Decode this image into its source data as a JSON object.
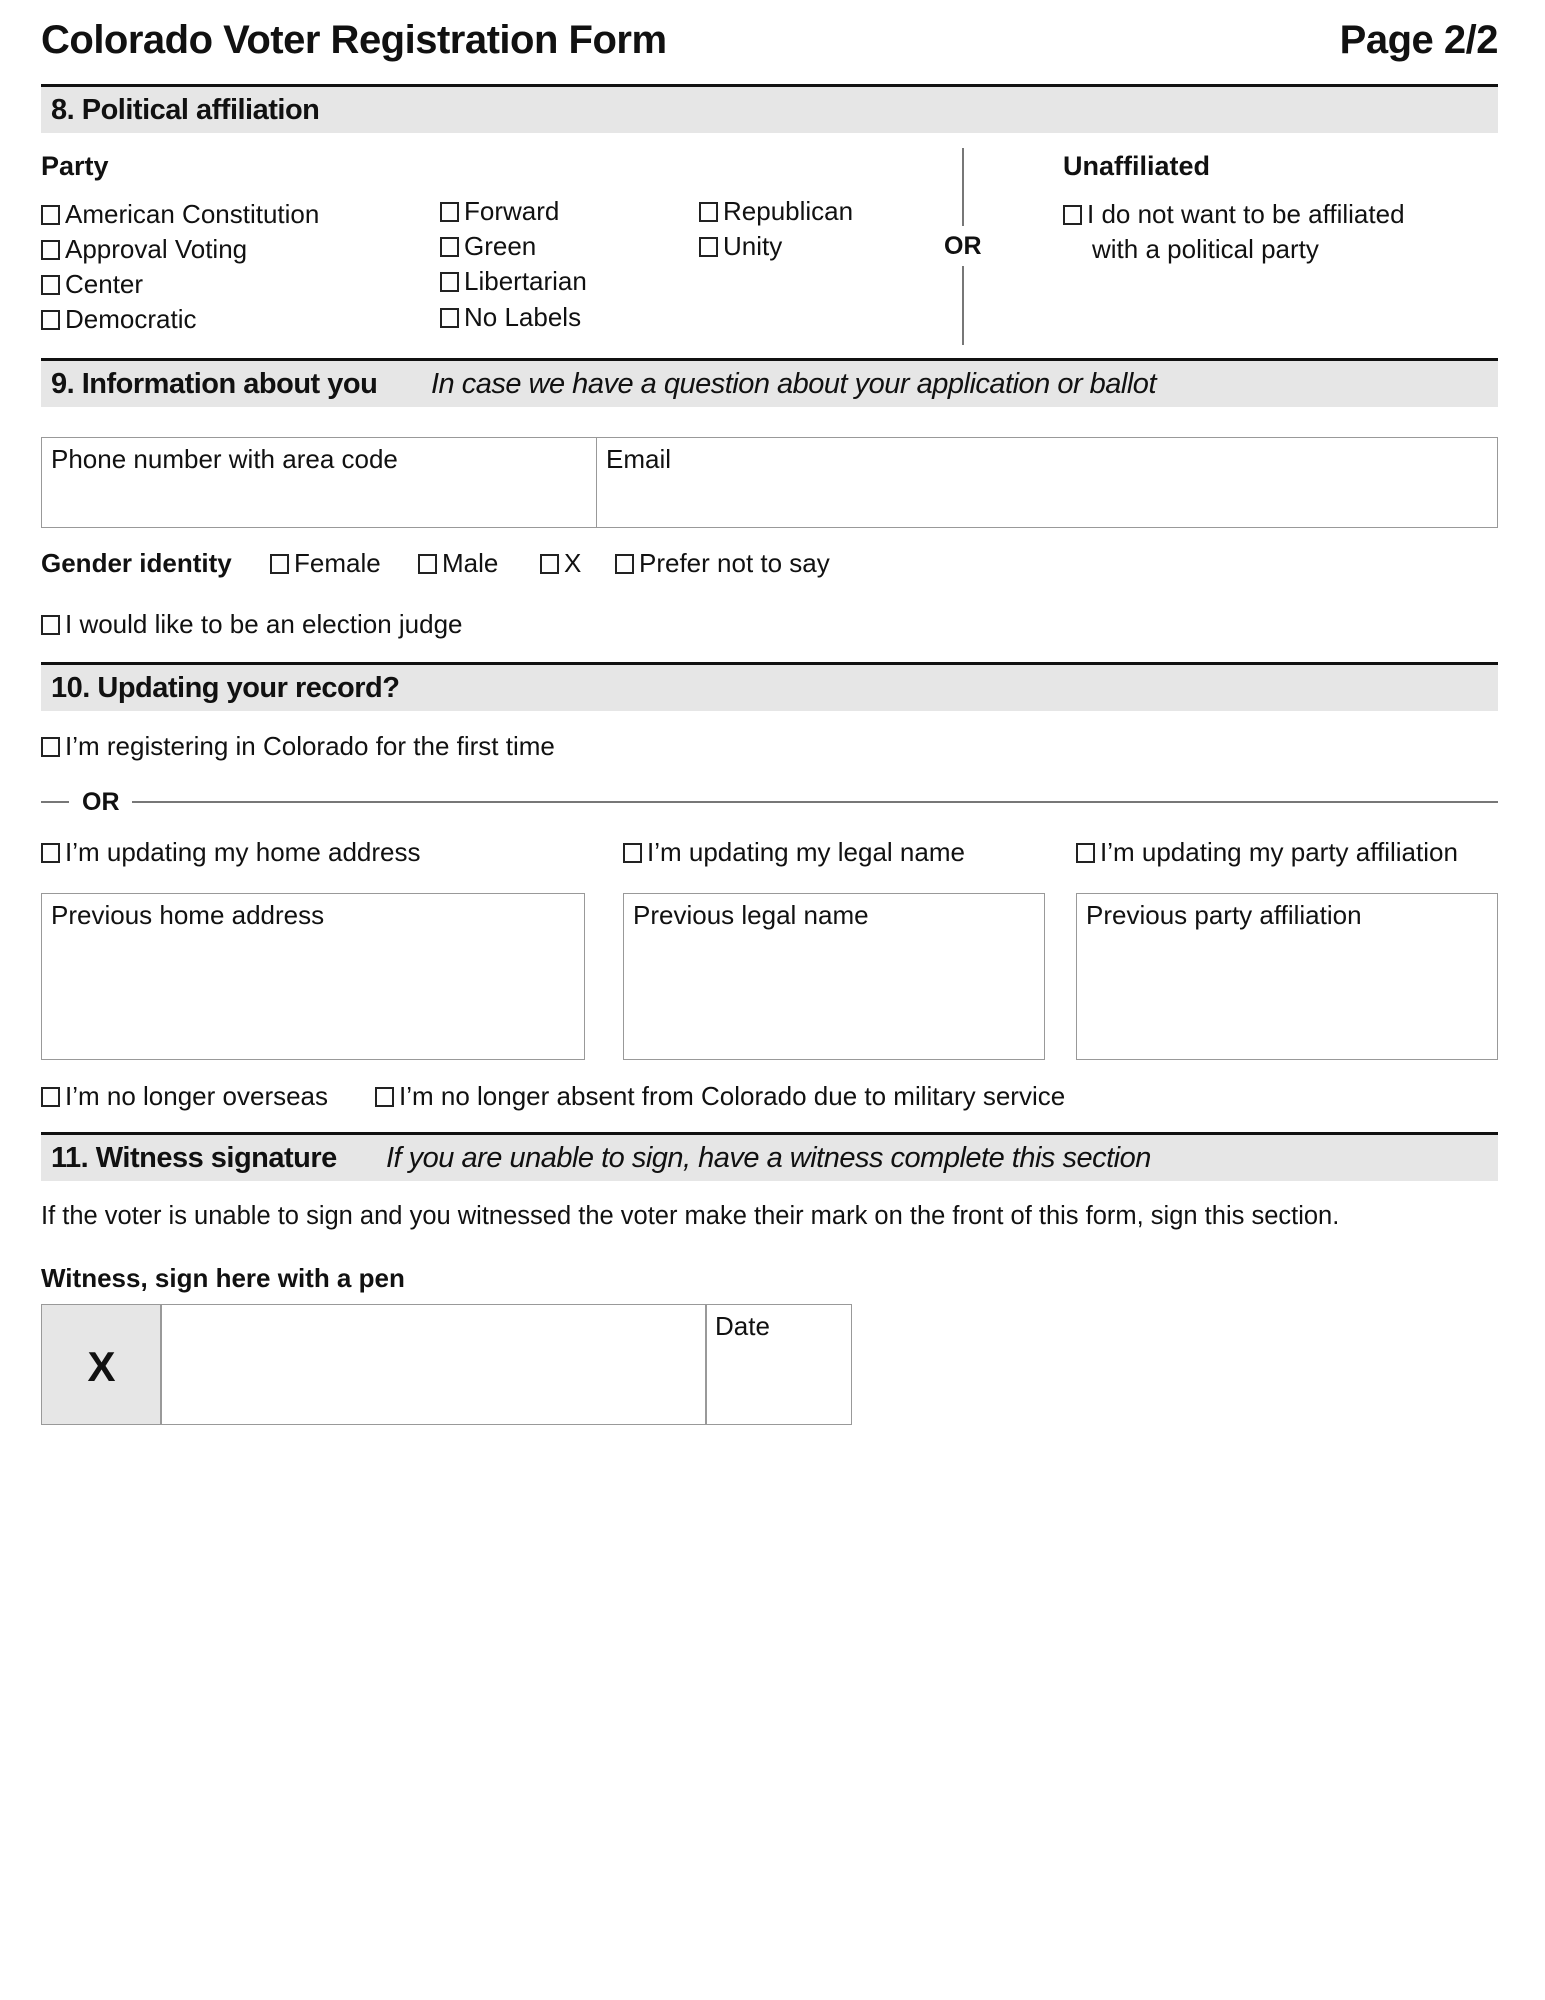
{
  "header": {
    "title": "Colorado Voter Registration Form",
    "page": "Page 2/2"
  },
  "section8": {
    "heading": "8. Political affiliation",
    "party_label": "Party",
    "parties": [
      "American Constitution",
      "Approval Voting",
      "Center",
      "Democratic",
      "Forward",
      "Green",
      "Libertarian",
      "No Labels",
      "Republican",
      "Unity"
    ],
    "or": "OR",
    "unaffiliated_label": "Unaffiliated",
    "unaffiliated_line1": "I do not want to be affiliated",
    "unaffiliated_line2": "with a political party"
  },
  "section9": {
    "heading": "9. Information about you",
    "subheading": "In case we have a question about your application or ballot",
    "phone_label": "Phone number with area code",
    "email_label": "Email",
    "gender_label": "Gender identity",
    "genders": [
      "Female",
      "Male",
      "X",
      "Prefer not to say"
    ],
    "election_judge": "I would like to be an election judge"
  },
  "section10": {
    "heading": "10. Updating your record?",
    "first_time": "I’m registering in Colorado for the first time",
    "or": "OR",
    "update_home": "I’m updating my home address",
    "update_name": "I’m updating my legal name",
    "update_party": "I’m updating my party affiliation",
    "prev_home": "Previous home address",
    "prev_name": "Previous legal name",
    "prev_party": "Previous party affiliation",
    "no_overseas": "I’m no longer overseas",
    "no_military": "I’m no longer absent from Colorado due to military service"
  },
  "section11": {
    "heading": "11. Witness signature",
    "subheading": "If you are unable to sign, have a witness complete this section",
    "instructions": "If the voter is unable to sign and you witnessed the voter make their mark on the front of this form, sign this section.",
    "sign_label": "Witness, sign here with a pen",
    "x_mark": "X",
    "date_label": "Date"
  }
}
